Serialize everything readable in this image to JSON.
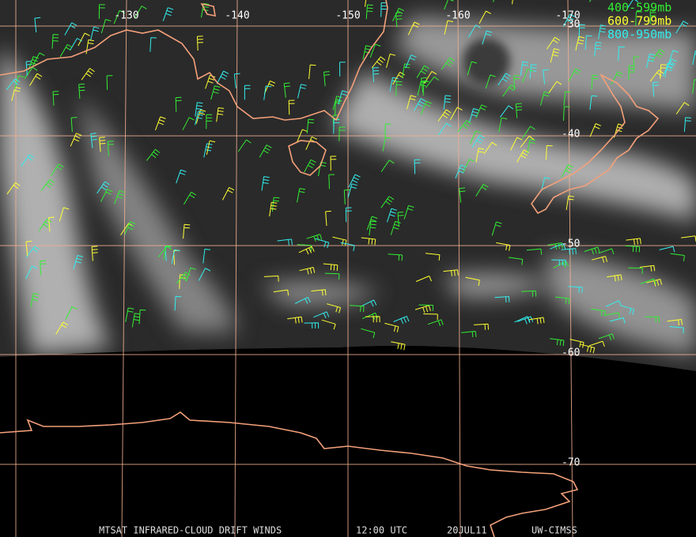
{
  "map": {
    "longitude_labels": [
      "-130",
      "-140",
      "-150",
      "-160",
      "-170"
    ],
    "latitude_labels": [
      "-30",
      "-40",
      "-50",
      "-60",
      "-70"
    ],
    "legend": [
      {
        "label": "400-599mb",
        "color": "#33ee33"
      },
      {
        "label": "600-799mb",
        "color": "#ffff33"
      },
      {
        "label": "800-950mb",
        "color": "#33eeee"
      }
    ],
    "footer": [
      "MTSAT INFRARED-CLOUD DRIFT WINDS",
      "12:00 UTC",
      "20JUL11",
      "UW-CIMSS"
    ]
  }
}
